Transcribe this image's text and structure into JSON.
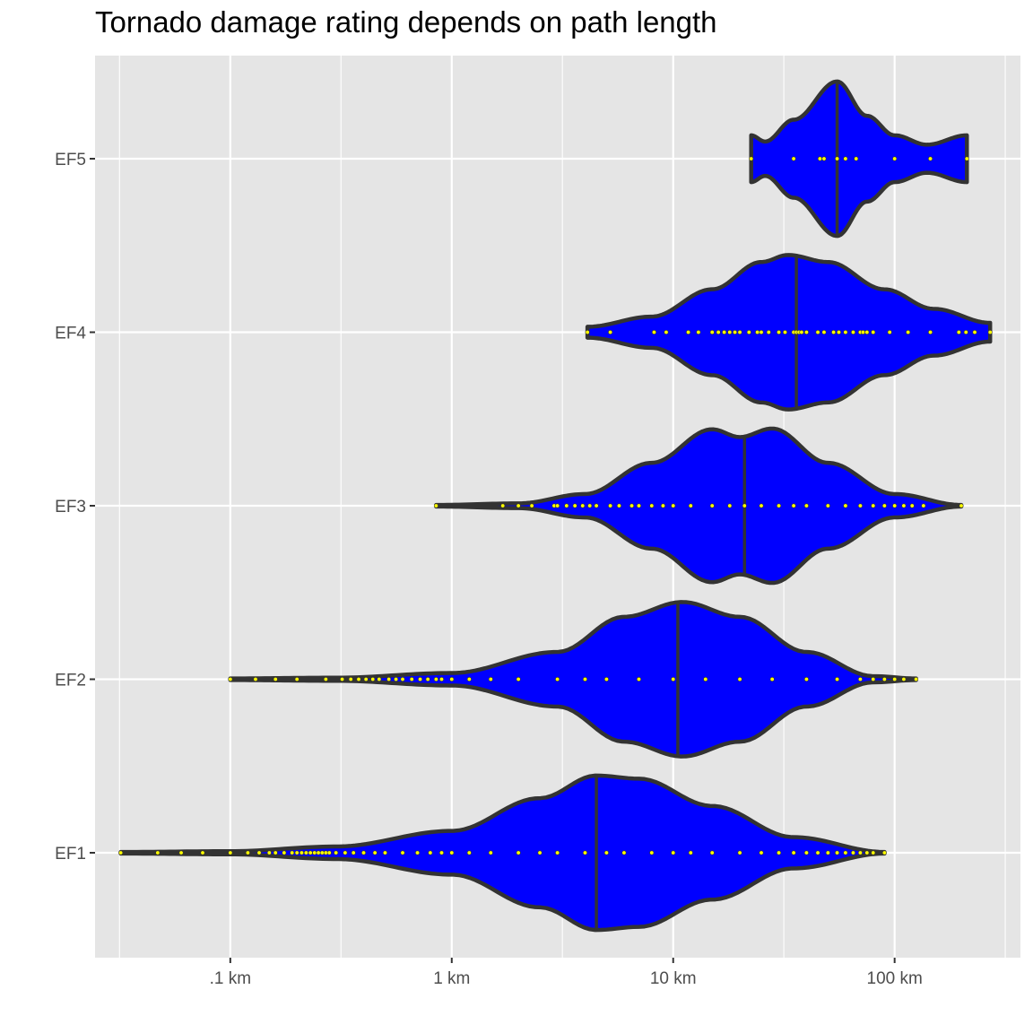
{
  "chart_data": {
    "type": "violin",
    "title": "Tornado damage rating depends on path length",
    "xlabel": "",
    "ylabel": "",
    "x_scale": "log10",
    "xlim": [
      0.0245,
      370
    ],
    "x_ticks": [
      {
        "value": 0.1,
        "label": ".1 km"
      },
      {
        "value": 1,
        "label": "1 km"
      },
      {
        "value": 10,
        "label": "10 km"
      },
      {
        "value": 100,
        "label": "100 km"
      }
    ],
    "x_minor_ticks": [
      0.0316,
      0.316,
      3.16,
      31.6,
      316
    ],
    "grid": true,
    "legend": "none",
    "colors": {
      "panel": "#e5e5e5",
      "grid": "#ffffff",
      "violin_fill": "#0000ff",
      "violin_outline": "#333333",
      "points": "#ffff00",
      "median_line": "#333333"
    },
    "categories": [
      "EF1",
      "EF2",
      "EF3",
      "EF4",
      "EF5"
    ],
    "series": [
      {
        "category": "EF1",
        "min": 0.032,
        "max": 90,
        "median": 4.5,
        "density": [
          [
            0.032,
            0.01
          ],
          [
            0.1,
            0.02
          ],
          [
            0.3,
            0.08
          ],
          [
            1,
            0.28
          ],
          [
            2.5,
            0.7
          ],
          [
            4.5,
            0.99
          ],
          [
            7,
            0.95
          ],
          [
            15,
            0.6
          ],
          [
            35,
            0.2
          ],
          [
            90,
            0.01
          ]
        ],
        "points": [
          0.032,
          0.047,
          0.06,
          0.075,
          0.1,
          0.12,
          0.135,
          0.15,
          0.16,
          0.175,
          0.19,
          0.2,
          0.21,
          0.22,
          0.23,
          0.24,
          0.25,
          0.26,
          0.27,
          0.28,
          0.3,
          0.33,
          0.36,
          0.4,
          0.45,
          0.5,
          0.6,
          0.7,
          0.8,
          0.9,
          1,
          1.2,
          1.5,
          2,
          2.5,
          3,
          4,
          5,
          6,
          8,
          10,
          12,
          15,
          20,
          25,
          30,
          35,
          40,
          45,
          50,
          55,
          60,
          65,
          70,
          75,
          80,
          90
        ]
      },
      {
        "category": "EF2",
        "min": 0.1,
        "max": 125,
        "median": 10.5,
        "density": [
          [
            0.1,
            0.01
          ],
          [
            0.3,
            0.02
          ],
          [
            1,
            0.08
          ],
          [
            3,
            0.35
          ],
          [
            6,
            0.8
          ],
          [
            11,
            0.99
          ],
          [
            20,
            0.8
          ],
          [
            40,
            0.35
          ],
          [
            80,
            0.04
          ],
          [
            125,
            0.01
          ]
        ],
        "points": [
          0.1,
          0.13,
          0.16,
          0.2,
          0.27,
          0.32,
          0.35,
          0.38,
          0.41,
          0.44,
          0.47,
          0.52,
          0.56,
          0.6,
          0.66,
          0.72,
          0.78,
          0.85,
          0.9,
          1,
          1.2,
          1.5,
          2,
          3,
          4,
          5,
          7,
          10,
          14,
          20,
          28,
          40,
          55,
          70,
          80,
          90,
          100,
          110,
          125
        ]
      },
      {
        "category": "EF3",
        "min": 0.85,
        "max": 200,
        "median": 21,
        "density": [
          [
            0.85,
            0.01
          ],
          [
            2,
            0.03
          ],
          [
            4,
            0.15
          ],
          [
            8,
            0.55
          ],
          [
            15,
            0.98
          ],
          [
            20,
            0.88
          ],
          [
            28,
            0.99
          ],
          [
            50,
            0.55
          ],
          [
            100,
            0.15
          ],
          [
            200,
            0.01
          ]
        ],
        "points": [
          0.85,
          1.7,
          2,
          2.3,
          2.9,
          3,
          3.3,
          3.6,
          3.9,
          4.2,
          4.5,
          5.2,
          5.7,
          6.5,
          7,
          8,
          9,
          10,
          12,
          15,
          18,
          21,
          25,
          30,
          35,
          40,
          50,
          60,
          70,
          80,
          90,
          100,
          110,
          120,
          135,
          200
        ]
      },
      {
        "category": "EF4",
        "min": 4.1,
        "max": 270,
        "median": 36,
        "density": [
          [
            4.1,
            0.07
          ],
          [
            8,
            0.2
          ],
          [
            15,
            0.55
          ],
          [
            25,
            0.9
          ],
          [
            33,
            0.99
          ],
          [
            50,
            0.9
          ],
          [
            90,
            0.55
          ],
          [
            150,
            0.3
          ],
          [
            270,
            0.12
          ]
        ],
        "points": [
          4.1,
          5.2,
          8.2,
          9.3,
          11.7,
          13,
          15,
          16,
          17,
          18,
          19,
          20,
          22,
          24,
          25,
          27,
          30,
          32,
          35,
          36,
          37,
          38,
          40,
          45,
          48,
          53,
          56,
          60,
          65,
          70,
          72,
          75,
          80,
          95,
          115,
          145,
          195,
          210,
          230,
          270
        ]
      },
      {
        "category": "EF5",
        "min": 22.5,
        "max": 212,
        "median": 55,
        "density": [
          [
            22.5,
            0.3
          ],
          [
            26,
            0.22
          ],
          [
            35,
            0.5
          ],
          [
            55,
            0.99
          ],
          [
            75,
            0.55
          ],
          [
            100,
            0.3
          ],
          [
            140,
            0.18
          ],
          [
            212,
            0.3
          ]
        ],
        "points": [
          22.5,
          35,
          46,
          48,
          55,
          60,
          67,
          100,
          145,
          212
        ]
      }
    ]
  }
}
